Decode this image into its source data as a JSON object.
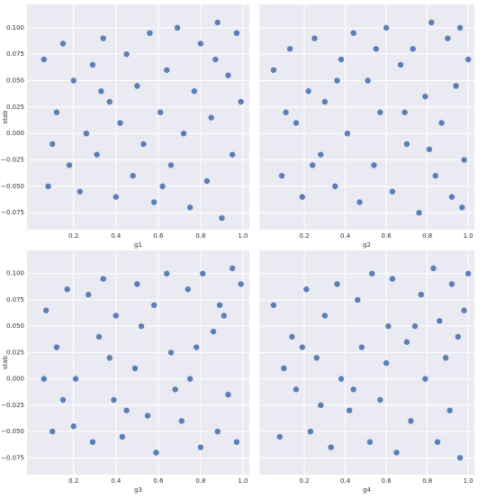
{
  "chart_data": [
    {
      "type": "scatter",
      "xlabel": "g1",
      "ylabel": "stab",
      "color": "#4c72b0",
      "xlim": [
        -0.02,
        1.03
      ],
      "ylim": [
        -0.091,
        0.122
      ],
      "grid": true,
      "show_yticks": true,
      "xticks": [
        0.2,
        0.4,
        0.6,
        0.8,
        {
          "value": 1.0,
          "label": "1.0"
        }
      ],
      "yticks": [
        {
          "value": -0.075,
          "label": "−0.075"
        },
        {
          "value": -0.05,
          "label": "−0.050"
        },
        {
          "value": -0.025,
          "label": "−0.025"
        },
        {
          "value": 0,
          "label": "0.000"
        },
        {
          "value": 0.025,
          "label": "0.025"
        },
        {
          "value": 0.05,
          "label": "0.050"
        },
        {
          "value": 0.075,
          "label": "0.075"
        },
        {
          "value": 0.1,
          "label": "0.100"
        }
      ],
      "x": [
        0.06,
        0.08,
        0.12,
        0.15,
        0.18,
        0.2,
        0.23,
        0.26,
        0.29,
        0.31,
        0.34,
        0.37,
        0.4,
        0.42,
        0.45,
        0.48,
        0.5,
        0.53,
        0.56,
        0.58,
        0.61,
        0.64,
        0.66,
        0.69,
        0.72,
        0.75,
        0.77,
        0.8,
        0.83,
        0.85,
        0.88,
        0.9,
        0.93,
        0.95,
        0.97,
        0.99,
        0.1,
        0.33,
        0.62,
        0.87
      ],
      "y": [
        0.07,
        -0.05,
        0.02,
        0.085,
        -0.03,
        0.05,
        -0.055,
        0.0,
        0.065,
        -0.02,
        0.09,
        0.03,
        -0.06,
        0.01,
        0.075,
        -0.04,
        0.045,
        -0.01,
        0.095,
        -0.065,
        0.02,
        0.06,
        -0.03,
        0.1,
        0.0,
        -0.07,
        0.04,
        0.085,
        -0.045,
        0.015,
        0.105,
        -0.08,
        0.055,
        -0.02,
        0.095,
        0.03,
        -0.01,
        0.04,
        -0.05,
        0.07
      ]
    },
    {
      "type": "scatter",
      "xlabel": "g2",
      "color": "#4c72b0",
      "xlim": [
        -0.02,
        1.03
      ],
      "ylim": [
        -0.091,
        0.122
      ],
      "grid": true,
      "show_yticks": false,
      "xticks": [
        0.2,
        0.4,
        0.6,
        0.8,
        {
          "value": 1.0,
          "label": "1.0"
        }
      ],
      "yticks": [
        -0.075,
        -0.05,
        -0.025,
        0,
        0.025,
        0.05,
        0.075,
        0.1
      ],
      "x": [
        0.05,
        0.09,
        0.13,
        0.16,
        0.19,
        0.22,
        0.25,
        0.28,
        0.3,
        0.35,
        0.38,
        0.41,
        0.44,
        0.47,
        0.51,
        0.54,
        0.57,
        0.6,
        0.63,
        0.67,
        0.7,
        0.73,
        0.76,
        0.79,
        0.82,
        0.84,
        0.87,
        0.9,
        0.92,
        0.94,
        0.96,
        0.98,
        1.0,
        0.11,
        0.36,
        0.55,
        0.69,
        0.81,
        0.97,
        0.24
      ],
      "y": [
        0.06,
        -0.04,
        0.08,
        0.01,
        -0.06,
        0.04,
        0.09,
        -0.02,
        0.03,
        -0.05,
        0.07,
        0.0,
        0.095,
        -0.065,
        0.05,
        -0.03,
        0.02,
        0.1,
        -0.055,
        0.065,
        -0.01,
        0.08,
        -0.075,
        0.035,
        0.105,
        -0.04,
        0.01,
        0.09,
        -0.06,
        0.045,
        0.1,
        -0.025,
        0.07,
        0.02,
        0.05,
        0.08,
        0.02,
        -0.015,
        -0.07,
        -0.03
      ]
    },
    {
      "type": "scatter",
      "xlabel": "g3",
      "ylabel": "stab",
      "color": "#4c72b0",
      "xlim": [
        -0.02,
        1.03
      ],
      "ylim": [
        -0.091,
        0.122
      ],
      "grid": true,
      "show_yticks": true,
      "xticks": [
        0.2,
        0.4,
        0.6,
        0.8,
        {
          "value": 1.0,
          "label": "1.0"
        }
      ],
      "yticks": [
        {
          "value": -0.075,
          "label": "−0.075"
        },
        {
          "value": -0.05,
          "label": "−0.050"
        },
        {
          "value": -0.025,
          "label": "−0.025"
        },
        {
          "value": 0,
          "label": "0.000"
        },
        {
          "value": 0.025,
          "label": "0.025"
        },
        {
          "value": 0.05,
          "label": "0.050"
        },
        {
          "value": 0.075,
          "label": "0.075"
        },
        {
          "value": 0.1,
          "label": "0.100"
        }
      ],
      "x": [
        0.07,
        0.1,
        0.12,
        0.17,
        0.2,
        0.21,
        0.27,
        0.29,
        0.32,
        0.34,
        0.39,
        0.4,
        0.43,
        0.49,
        0.5,
        0.55,
        0.58,
        0.59,
        0.64,
        0.66,
        0.71,
        0.74,
        0.75,
        0.8,
        0.81,
        0.86,
        0.88,
        0.89,
        0.93,
        0.95,
        0.97,
        0.99,
        0.06,
        0.15,
        0.37,
        0.52,
        0.68,
        0.78,
        0.91,
        0.45
      ],
      "y": [
        0.065,
        -0.05,
        0.03,
        0.085,
        -0.045,
        0.0,
        0.08,
        -0.06,
        0.04,
        0.095,
        -0.02,
        0.06,
        -0.055,
        0.01,
        0.09,
        -0.035,
        0.07,
        -0.07,
        0.1,
        0.025,
        -0.04,
        0.085,
        0.0,
        -0.065,
        0.1,
        0.045,
        -0.05,
        0.07,
        -0.015,
        0.105,
        -0.06,
        0.09,
        0.0,
        -0.02,
        0.02,
        0.05,
        -0.01,
        0.03,
        0.06,
        -0.03
      ]
    },
    {
      "type": "scatter",
      "xlabel": "g4",
      "color": "#4c72b0",
      "xlim": [
        -0.02,
        1.03
      ],
      "ylim": [
        -0.091,
        0.122
      ],
      "grid": true,
      "show_yticks": false,
      "xticks": [
        0.2,
        0.4,
        0.6,
        0.8,
        {
          "value": 1.0,
          "label": "1.0"
        }
      ],
      "yticks": [
        -0.075,
        -0.05,
        -0.025,
        0,
        0.025,
        0.05,
        0.075,
        0.1
      ],
      "x": [
        0.05,
        0.08,
        0.14,
        0.16,
        0.21,
        0.23,
        0.26,
        0.3,
        0.33,
        0.36,
        0.38,
        0.42,
        0.46,
        0.48,
        0.52,
        0.53,
        0.57,
        0.61,
        0.63,
        0.65,
        0.7,
        0.72,
        0.77,
        0.79,
        0.83,
        0.85,
        0.86,
        0.91,
        0.92,
        0.96,
        0.98,
        1.0,
        0.1,
        0.19,
        0.28,
        0.44,
        0.6,
        0.74,
        0.89,
        0.95
      ],
      "y": [
        0.07,
        -0.055,
        0.04,
        -0.01,
        0.085,
        -0.05,
        0.02,
        0.06,
        -0.065,
        0.09,
        0.0,
        -0.03,
        0.075,
        0.03,
        -0.06,
        0.1,
        -0.02,
        0.05,
        0.095,
        -0.07,
        0.035,
        -0.04,
        0.08,
        0.0,
        0.105,
        -0.06,
        0.055,
        -0.03,
        0.09,
        -0.075,
        0.065,
        0.1,
        0.01,
        0.03,
        -0.025,
        -0.01,
        0.015,
        0.05,
        0.02,
        0.04
      ]
    }
  ]
}
